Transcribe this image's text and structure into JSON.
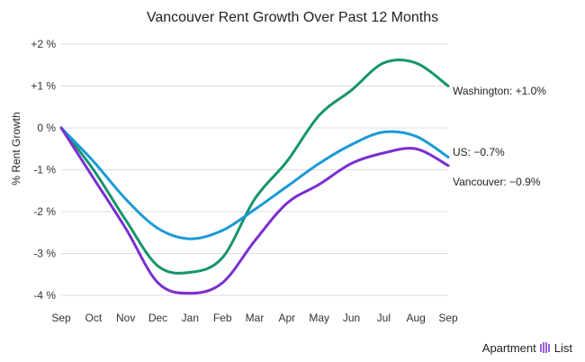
{
  "chart_data": {
    "type": "line",
    "title": "Vancouver Rent Growth Over Past 12 Months",
    "ylabel": "% Rent Growth",
    "xlabel": "",
    "categories": [
      "Sep",
      "Oct",
      "Nov",
      "Dec",
      "Jan",
      "Feb",
      "Mar",
      "Apr",
      "May",
      "Jun",
      "Jul",
      "Aug",
      "Sep"
    ],
    "ylim": [
      -4,
      2
    ],
    "yticks": [
      2,
      1,
      0,
      -1,
      -2,
      -3,
      -4
    ],
    "ytick_labels": [
      "+2 %",
      "+1 %",
      "0 %",
      "-1 %",
      "-2 %",
      "-3 %",
      "-4 %"
    ],
    "grid": true,
    "legend": "end-labels",
    "series": [
      {
        "name": "Washington",
        "label": "Washington: +1.0%",
        "color": "#16956c",
        "values": [
          0,
          -1.0,
          -2.2,
          -3.3,
          -3.45,
          -3.1,
          -1.7,
          -0.8,
          0.3,
          0.9,
          1.55,
          1.55,
          1.0
        ]
      },
      {
        "name": "US",
        "label": "US: −0.7%",
        "color": "#1b9ad6",
        "values": [
          0,
          -0.8,
          -1.7,
          -2.4,
          -2.65,
          -2.45,
          -1.95,
          -1.4,
          -0.85,
          -0.4,
          -0.1,
          -0.2,
          -0.7
        ]
      },
      {
        "name": "Vancouver",
        "label": "Vancouver: −0.9%",
        "color": "#7a2fd0",
        "values": [
          0,
          -1.2,
          -2.4,
          -3.7,
          -3.95,
          -3.7,
          -2.7,
          -1.8,
          -1.35,
          -0.85,
          -0.6,
          -0.5,
          -0.9
        ]
      }
    ]
  },
  "brand": {
    "left": "Apartment",
    "right": "List",
    "icon": "apartment-list-logo-icon"
  }
}
